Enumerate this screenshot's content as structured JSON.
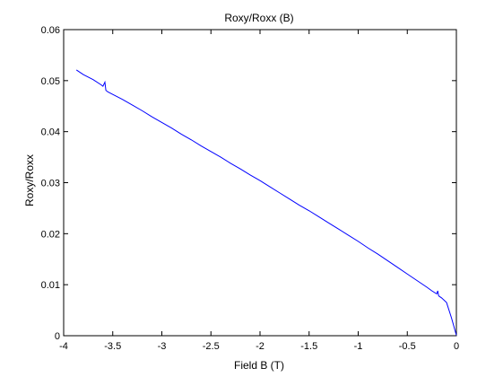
{
  "chart_data": {
    "type": "line",
    "title": "Roxy/Roxx (B)",
    "xlabel": "Field B (T)",
    "ylabel": "Roxy/Roxx",
    "xlim": [
      -4,
      0
    ],
    "ylim": [
      0,
      0.06
    ],
    "xticks": [
      -4,
      -3.5,
      -3,
      -2.5,
      -2,
      -1.5,
      -1,
      -0.5,
      0
    ],
    "xtick_labels": [
      "-4",
      "-3.5",
      "-3",
      "-2.5",
      "-2",
      "-1.5",
      "-1",
      "-0.5",
      "0"
    ],
    "yticks": [
      0,
      0.01,
      0.02,
      0.03,
      0.04,
      0.05,
      0.06
    ],
    "ytick_labels": [
      "0",
      "0.01",
      "0.02",
      "0.03",
      "0.04",
      "0.05",
      "0.06"
    ],
    "grid": false,
    "line_color": "#0000ff",
    "series": [
      {
        "x": [
          -3.87,
          -3.8,
          -3.7,
          -3.62,
          -3.6,
          -3.58,
          -3.57,
          -3.55,
          -3.5,
          -3.4,
          -3.3,
          -3.2,
          -3.1,
          -3.0,
          -2.9,
          -2.8,
          -2.7,
          -2.6,
          -2.5,
          -2.4,
          -2.3,
          -2.2,
          -2.1,
          -2.0,
          -1.9,
          -1.8,
          -1.7,
          -1.6,
          -1.5,
          -1.4,
          -1.3,
          -1.2,
          -1.1,
          -1.0,
          -0.9,
          -0.8,
          -0.7,
          -0.6,
          -0.5,
          -0.4,
          -0.3,
          -0.25,
          -0.2,
          -0.19,
          -0.18,
          -0.15,
          -0.1,
          -0.05,
          0.0
        ],
        "y": [
          0.0521,
          0.0512,
          0.0502,
          0.0492,
          0.0489,
          0.0497,
          0.0481,
          0.0478,
          0.0473,
          0.0463,
          0.0452,
          0.0441,
          0.0429,
          0.0418,
          0.0407,
          0.0395,
          0.0384,
          0.0372,
          0.0361,
          0.035,
          0.0338,
          0.0327,
          0.0315,
          0.0304,
          0.0292,
          0.028,
          0.0268,
          0.0256,
          0.0245,
          0.0233,
          0.0221,
          0.0209,
          0.0197,
          0.0185,
          0.0172,
          0.016,
          0.0147,
          0.0134,
          0.0121,
          0.0108,
          0.0095,
          0.0088,
          0.0082,
          0.0088,
          0.0078,
          0.0074,
          0.0065,
          0.0035,
          0.0001
        ]
      }
    ]
  }
}
